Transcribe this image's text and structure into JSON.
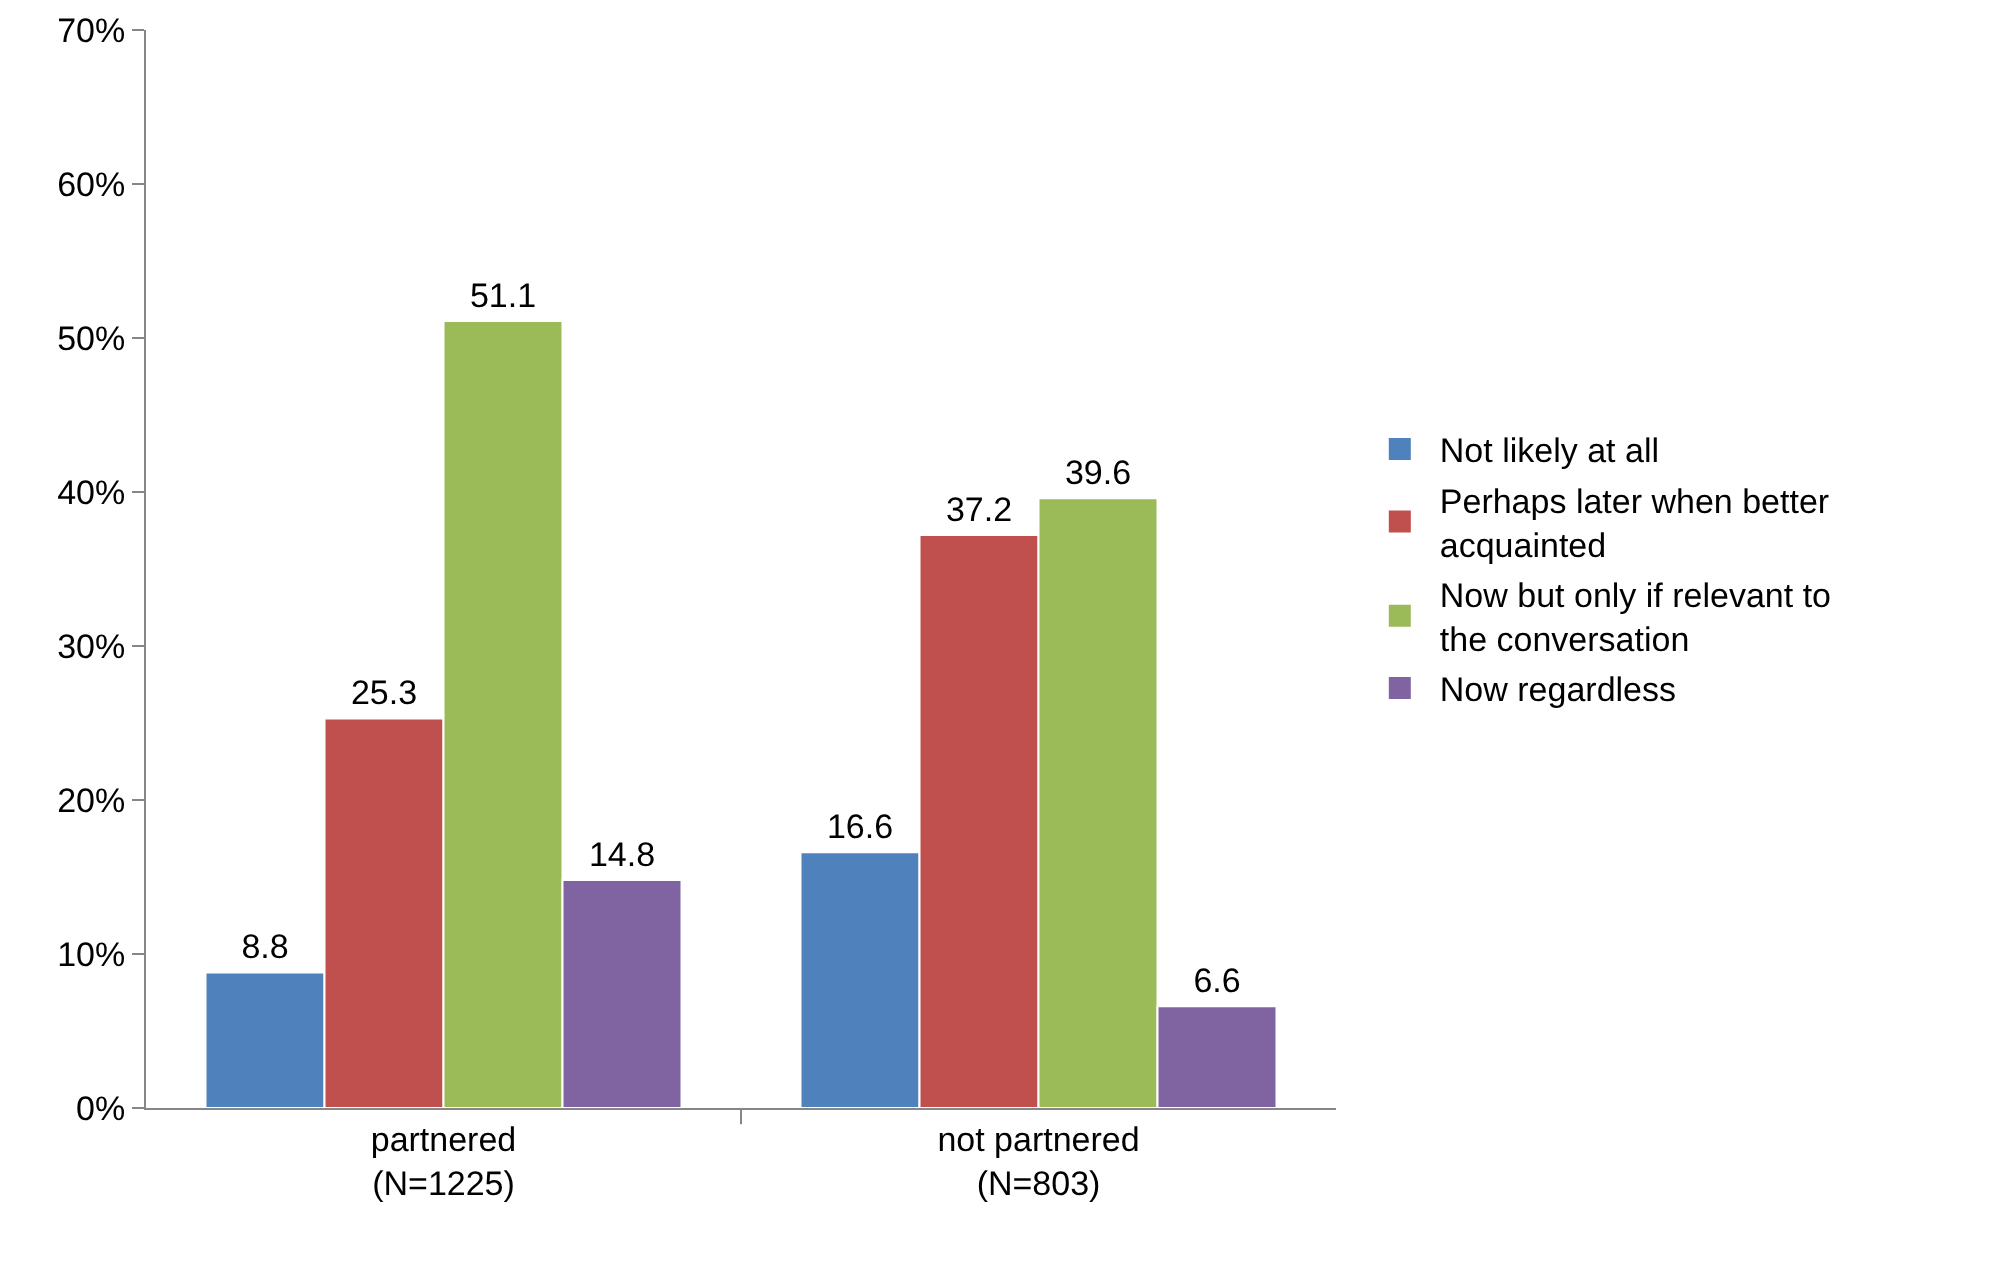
{
  "chart_data": {
    "type": "bar",
    "categories": [
      "partnered\n(N=1225)",
      "not partnered\n(N=803)"
    ],
    "series": [
      {
        "name": "Not likely at all",
        "color": "#4f81bd",
        "values": [
          8.8,
          16.6
        ]
      },
      {
        "name": "Perhaps later when better acquainted",
        "color": "#c0504d",
        "values": [
          25.3,
          37.2
        ]
      },
      {
        "name": "Now but only if relevant to the conversation",
        "color": "#9bbb59",
        "values": [
          51.1,
          39.6
        ]
      },
      {
        "name": "Now regardless",
        "color": "#8064a2",
        "values": [
          14.8,
          6.6
        ]
      }
    ],
    "ylim": [
      0,
      70
    ],
    "yticks": [
      {
        "value": 0,
        "label": "0%"
      },
      {
        "value": 10,
        "label": "10%"
      },
      {
        "value": 20,
        "label": "20%"
      },
      {
        "value": 30,
        "label": "30%"
      },
      {
        "value": 40,
        "label": "40%"
      },
      {
        "value": 50,
        "label": "50%"
      },
      {
        "value": 60,
        "label": "60%"
      },
      {
        "value": 70,
        "label": "70%"
      }
    ],
    "data_labels": true,
    "grid": false,
    "legend": "right"
  }
}
